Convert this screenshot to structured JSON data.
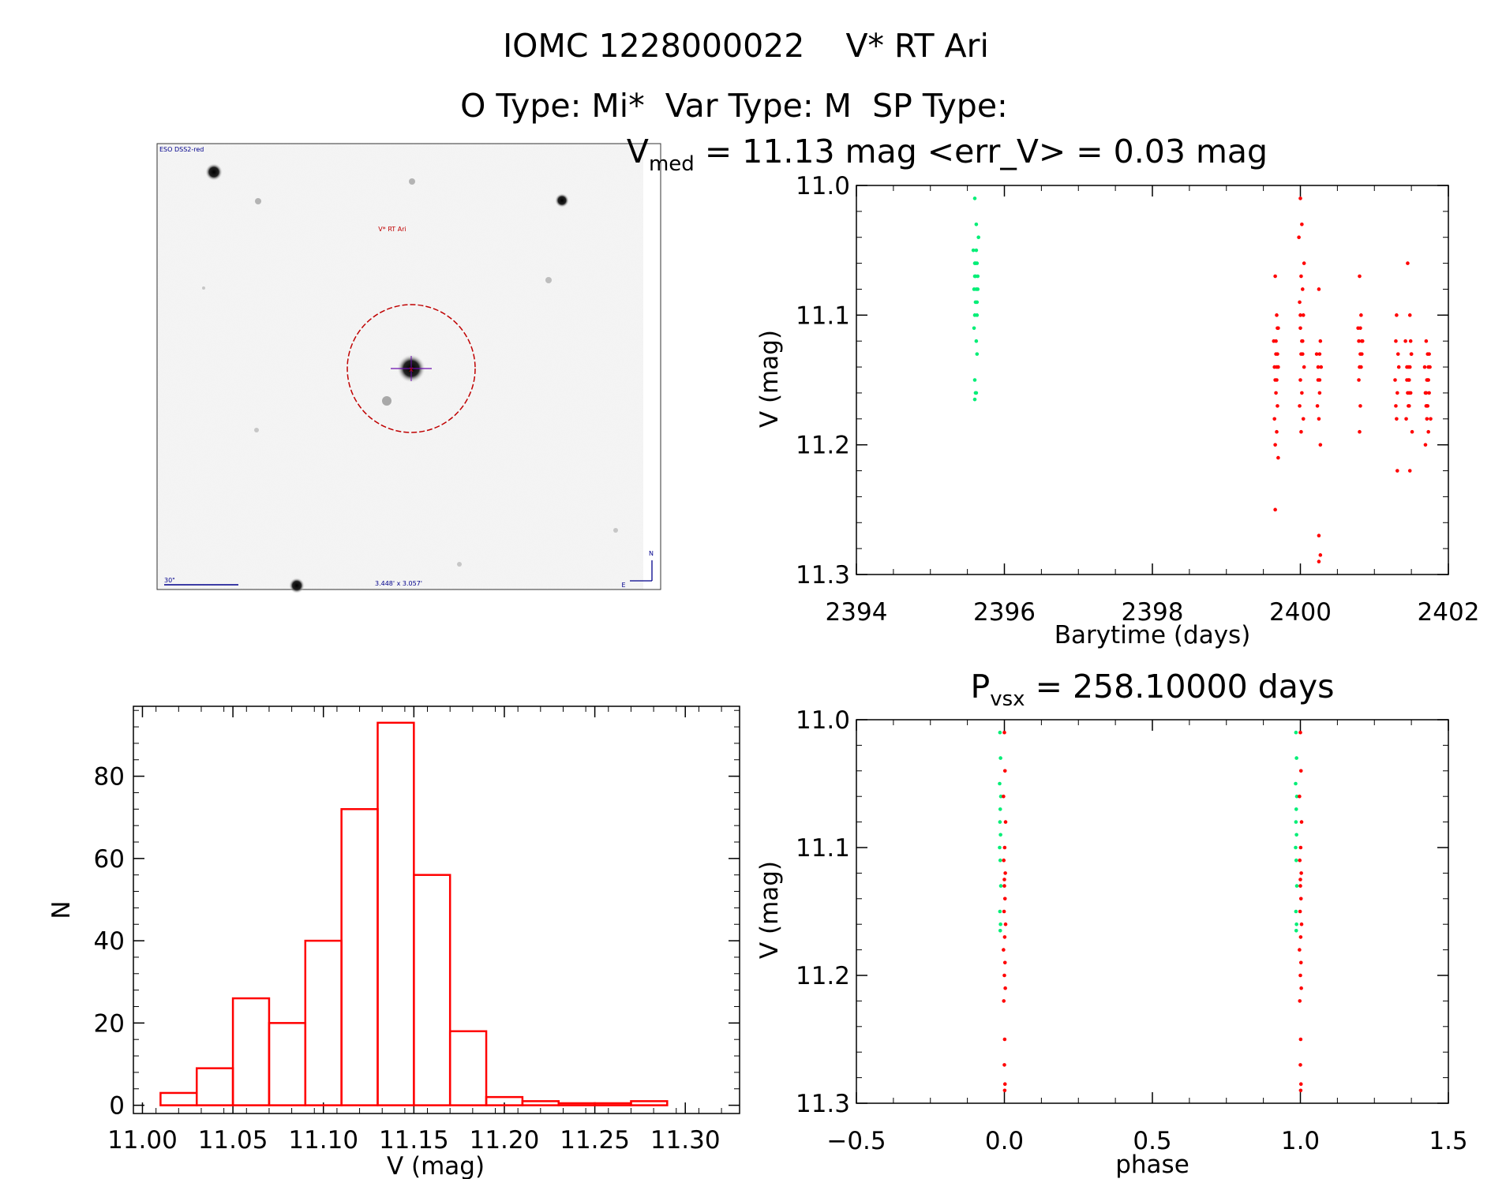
{
  "header": {
    "line1": "IOMC 1228000022    V* RT Ari",
    "line2": "O Type: Mi*  Var Type: M  SP Type:"
  },
  "finder": {
    "survey_label": "ESO DSS2-red",
    "target_label": "V* RT Ari",
    "scale_label": "30\"",
    "size_label": "3.448' x 3.057'",
    "north_label": "N",
    "east_label": "E",
    "colors": {
      "target": "#c00000",
      "annotation": "#00008b"
    }
  },
  "chart_data": [
    {
      "id": "lightcurve",
      "type": "scatter",
      "title": "V_med = 11.13 mag <err_V> = 0.03 mag",
      "title_parts": {
        "prefix": "V",
        "sub": "med",
        "suffix": " = 11.13 mag <err_V> = 0.03 mag"
      },
      "xlabel": "Barytime (days)",
      "ylabel": "V (mag)",
      "xlim": [
        2394,
        2402
      ],
      "ylim": [
        11.3,
        11.0
      ],
      "xticks": [
        2394,
        2396,
        2398,
        2400,
        2402
      ],
      "xtick_labels": [
        "2394",
        "2396",
        "2398",
        "2400",
        "2402"
      ],
      "yticks": [
        11.0,
        11.1,
        11.2,
        11.3
      ],
      "ytick_labels": [
        "11.0",
        "11.1",
        "11.2",
        "11.3"
      ],
      "series": [
        {
          "name": "green",
          "color": "#00ee76",
          "x": [
            2395.6,
            2395.62,
            2395.58,
            2395.65,
            2395.61,
            2395.63,
            2395.6,
            2395.64,
            2395.59,
            2395.62,
            2395.61,
            2395.6,
            2395.63,
            2395.62,
            2395.6,
            2395.61,
            2395.64,
            2395.59,
            2395.62,
            2395.63,
            2395.6,
            2395.61,
            2395.62,
            2395.6,
            2395.63
          ],
          "y": [
            11.01,
            11.03,
            11.05,
            11.04,
            11.06,
            11.06,
            11.07,
            11.07,
            11.08,
            11.08,
            11.09,
            11.1,
            11.1,
            11.05,
            11.06,
            11.07,
            11.08,
            11.11,
            11.12,
            11.13,
            11.15,
            11.16,
            11.16,
            11.165,
            11.09
          ]
        },
        {
          "name": "red",
          "color": "#ff0000",
          "x": [
            2399.66,
            2399.68,
            2399.7,
            2399.64,
            2399.67,
            2399.69,
            2399.65,
            2399.7,
            2399.66,
            2399.68,
            2399.67,
            2399.69,
            2399.65,
            2399.68,
            2399.66,
            2399.7,
            2399.67,
            2399.68,
            2399.66,
            2399.69,
            2400.0,
            2400.02,
            2399.98,
            2400.05,
            2400.01,
            2400.03,
            2399.99,
            2400.04,
            2400.0,
            2400.02,
            2400.01,
            2400.03,
            2400.05,
            2400.0,
            2400.02,
            2399.99,
            2400.04,
            2400.01,
            2400.03,
            2400.0,
            2400.25,
            2400.27,
            2400.22,
            2400.28,
            2400.24,
            2400.26,
            2400.23,
            2400.25,
            2400.27,
            2400.24,
            2400.26,
            2400.25,
            2400.27,
            2400.25,
            2400.26,
            2400.8,
            2400.82,
            2400.78,
            2400.84,
            2400.79,
            2400.81,
            2400.83,
            2400.8,
            2400.82,
            2400.79,
            2400.81,
            2400.8,
            2400.83,
            2400.81,
            2401.3,
            2401.32,
            2401.28,
            2401.31,
            2401.29,
            2401.3,
            2401.33,
            2401.31,
            2401.29,
            2401.45,
            2401.48,
            2401.42,
            2401.5,
            2401.46,
            2401.44,
            2401.49,
            2401.47,
            2401.43,
            2401.51,
            2401.46,
            2401.48,
            2401.45,
            2401.5,
            2401.47,
            2401.46,
            2401.49,
            2401.44,
            2401.47,
            2401.48,
            2401.7,
            2401.72,
            2401.68,
            2401.75,
            2401.71,
            2401.73,
            2401.69,
            2401.74,
            2401.7,
            2401.72,
            2401.76,
            2401.71,
            2401.73,
            2401.69,
            2401.74,
            2401.72,
            2401.7,
            2401.73,
            2401.71
          ],
          "y": [
            11.07,
            11.1,
            11.11,
            11.12,
            11.13,
            11.13,
            11.14,
            11.14,
            11.15,
            11.15,
            11.16,
            11.17,
            11.18,
            11.19,
            11.2,
            11.21,
            11.12,
            11.14,
            11.25,
            11.11,
            11.01,
            11.03,
            11.04,
            11.06,
            11.07,
            11.08,
            11.09,
            11.1,
            11.11,
            11.12,
            11.13,
            11.13,
            11.14,
            11.15,
            11.16,
            11.17,
            11.18,
            11.19,
            11.12,
            11.1,
            11.08,
            11.12,
            11.13,
            11.14,
            11.15,
            11.16,
            11.17,
            11.18,
            11.2,
            11.14,
            11.13,
            11.27,
            11.285,
            11.29,
            11.15,
            11.07,
            11.1,
            11.11,
            11.12,
            11.12,
            11.13,
            11.13,
            11.14,
            11.14,
            11.15,
            11.17,
            11.19,
            11.12,
            11.11,
            11.1,
            11.13,
            11.15,
            11.16,
            11.17,
            11.18,
            11.14,
            11.22,
            11.12,
            11.06,
            11.1,
            11.12,
            11.13,
            11.14,
            11.15,
            11.16,
            11.17,
            11.18,
            11.19,
            11.15,
            11.14,
            11.16,
            11.13,
            11.15,
            11.17,
            11.12,
            11.14,
            11.16,
            11.22,
            11.12,
            11.13,
            11.14,
            11.14,
            11.15,
            11.15,
            11.16,
            11.16,
            11.17,
            11.17,
            11.18,
            11.18,
            11.19,
            11.2,
            11.13,
            11.15,
            11.16,
            11.14,
            11.17
          ]
        }
      ]
    },
    {
      "id": "histogram",
      "type": "bar",
      "title": "",
      "xlabel": "V (mag)",
      "ylabel": "N",
      "xlim": [
        10.995,
        11.33
      ],
      "ylim": [
        -2,
        97
      ],
      "xticks": [
        11.0,
        11.05,
        11.1,
        11.15,
        11.2,
        11.25,
        11.3
      ],
      "xtick_labels": [
        "11.00",
        "11.05",
        "11.10",
        "11.15",
        "11.20",
        "11.25",
        "11.30"
      ],
      "yticks": [
        0,
        20,
        40,
        60,
        80
      ],
      "ytick_labels": [
        "0",
        "20",
        "40",
        "60",
        "80"
      ],
      "bin_edges": [
        11.01,
        11.03,
        11.05,
        11.07,
        11.09,
        11.11,
        11.13,
        11.15,
        11.17,
        11.19,
        11.21,
        11.23,
        11.25,
        11.27,
        11.29
      ],
      "values": [
        3,
        9,
        26,
        20,
        40,
        72,
        93,
        56,
        18,
        2,
        1,
        0.5,
        0.5,
        1
      ],
      "color": "#ff0000"
    },
    {
      "id": "phase",
      "type": "scatter",
      "title": "P_vsx = 258.10000 days",
      "title_parts": {
        "prefix": "P",
        "sub": "vsx",
        "suffix": " = 258.10000 days"
      },
      "xlabel": "phase",
      "ylabel": "V (mag)",
      "xlim": [
        -0.5,
        1.5
      ],
      "ylim": [
        11.3,
        11.0
      ],
      "xticks": [
        -0.5,
        0.0,
        0.5,
        1.0,
        1.5
      ],
      "xtick_labels": [
        "−0.5",
        "0.0",
        "0.5",
        "1.0",
        "1.5"
      ],
      "yticks": [
        11.0,
        11.1,
        11.2,
        11.3
      ],
      "ytick_labels": [
        "11.0",
        "11.1",
        "11.2",
        "11.3"
      ],
      "series": [
        {
          "name": "green",
          "color": "#00ee76",
          "x": [
            -0.015,
            -0.013,
            -0.016,
            -0.012,
            -0.014,
            -0.015,
            -0.013,
            -0.016,
            -0.014,
            -0.012,
            -0.015,
            -0.013,
            -0.014,
            0.985,
            0.987,
            0.984,
            0.988,
            0.986,
            0.985,
            0.987,
            0.984,
            0.986,
            0.988,
            0.985,
            0.987,
            0.986
          ],
          "y": [
            11.01,
            11.03,
            11.05,
            11.06,
            11.07,
            11.08,
            11.09,
            11.1,
            11.11,
            11.13,
            11.15,
            11.16,
            11.165,
            11.01,
            11.03,
            11.05,
            11.06,
            11.07,
            11.08,
            11.09,
            11.1,
            11.11,
            11.13,
            11.15,
            11.16,
            11.165
          ]
        },
        {
          "name": "red",
          "color": "#ff0000",
          "x": [
            0.0,
            0.002,
            -0.003,
            0.004,
            0.001,
            -0.002,
            0.003,
            0.0,
            0.002,
            -0.001,
            0.004,
            0.001,
            -0.003,
            0.002,
            0.0,
            0.003,
            -0.002,
            0.001,
            0.0,
            0.002,
            0.001,
            0.0,
            1.0,
            1.002,
            0.997,
            1.004,
            1.001,
            0.998,
            1.003,
            1.0,
            1.002,
            0.999,
            1.004,
            1.001,
            0.997,
            1.002,
            1.0,
            1.003,
            0.998,
            1.001,
            1.0,
            1.002,
            1.001,
            1.0
          ],
          "y": [
            11.01,
            11.04,
            11.06,
            11.08,
            11.1,
            11.11,
            11.12,
            11.13,
            11.14,
            11.15,
            11.16,
            11.17,
            11.18,
            11.19,
            11.2,
            11.21,
            11.22,
            11.25,
            11.27,
            11.285,
            11.29,
            11.125,
            11.01,
            11.04,
            11.06,
            11.08,
            11.1,
            11.11,
            11.12,
            11.13,
            11.14,
            11.15,
            11.16,
            11.17,
            11.18,
            11.19,
            11.2,
            11.21,
            11.22,
            11.25,
            11.27,
            11.285,
            11.29,
            11.125
          ]
        }
      ]
    }
  ]
}
